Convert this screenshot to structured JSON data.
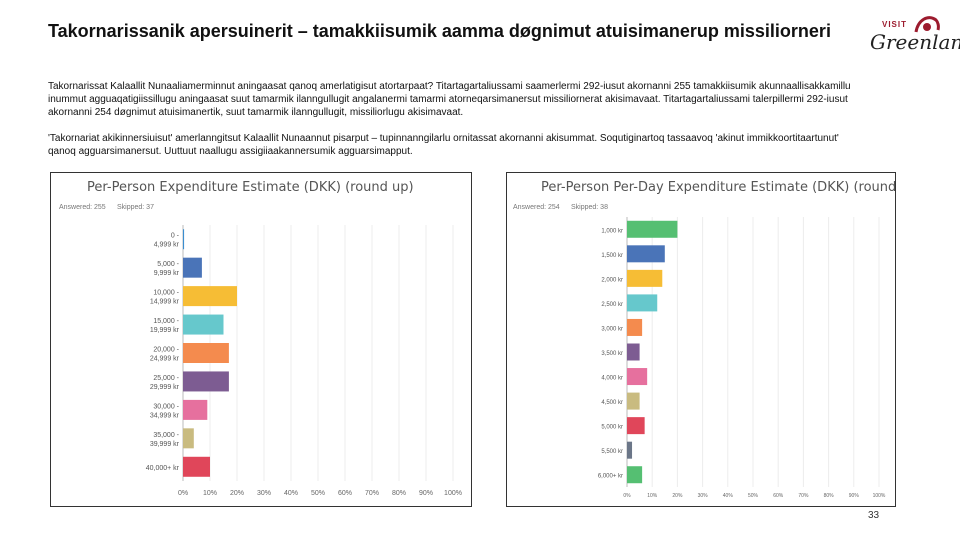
{
  "title": "Takornarissanik apersuinerit – tamakkiisumik aamma døgnimut atuisimanerup missiliorneri",
  "logo": {
    "visit": "VISIT",
    "name": "Greenland"
  },
  "paragraph1": "Takornarissat Kalaallit Nunaaliamerminnut aningaasat qanoq amerlatigisut atortarpaat? Titartagartaliussami saamerlermi 292-iusut akornanni 255 tamakkiisumik akunnaallisakkamillu inummut agguaqatigiissillugu aningaasat suut tamarmik ilanngullugit angalanermi tamarmi atorneqarsimanersut missiliornerat akisimavaat. Titartagartaliussami talerpillermi 292-iusut akornanni 254 døgnimut atuisimanertik, suut tamarmik ilanngullugit, missiliorlugu akisimavaat.",
  "paragraph2": "'Takornariat akikinnersiuisut' amerlanngitsut Kalaallit Nunaannut pisarput – tupinnanngilarlu ornitassat akornanni akisummat. Soqutiginartoq tassaavoq 'akinut immikkoortitaartunut' qanoq agguarsimanersut. Uuttuut naallugu assigiiaakannersumik agguarsimapput.",
  "page_number": "33",
  "chart_data": [
    {
      "type": "bar",
      "orientation": "horizontal",
      "title": "Per-Person Expenditure Estimate (DKK) (round up)",
      "answered": "Answered: 255",
      "skipped": "Skipped: 37",
      "categories": [
        "0 - 4,999 kr",
        "5,000 - 9,999 kr",
        "10,000 - 14,999 kr",
        "15,000 - 19,999 kr",
        "20,000 - 24,999 kr",
        "25,000 - 29,999 kr",
        "30,000 - 34,999 kr",
        "35,000 - 39,999 kr",
        "40,000+ kr"
      ],
      "values": [
        0.4,
        7,
        20,
        15,
        17,
        17,
        9,
        4,
        10
      ],
      "colors": [
        "#3b8ed0",
        "#4a74b8",
        "#f6bd35",
        "#66c8cc",
        "#f48b4e",
        "#7d5c92",
        "#e6709e",
        "#c9bb80",
        "#e0465a"
      ],
      "xlim": [
        0,
        100
      ],
      "xticks": [
        "0%",
        "10%",
        "20%",
        "30%",
        "40%",
        "50%",
        "60%",
        "70%",
        "80%",
        "90%",
        "100%"
      ]
    },
    {
      "type": "bar",
      "orientation": "horizontal",
      "title": "Per-Person Per-Day Expenditure Estimate (DKK) (round up)",
      "answered": "Answered: 254",
      "skipped": "Skipped: 38",
      "categories": [
        "1,000 kr",
        "1,500 kr",
        "2,000 kr",
        "2,500 kr",
        "3,000 kr",
        "3,500 kr",
        "4,000 kr",
        "4,500 kr",
        "5,000 kr",
        "5,500 kr",
        "6,000+ kr"
      ],
      "values": [
        20,
        15,
        14,
        12,
        6,
        5,
        8,
        5,
        7,
        2,
        6
      ],
      "colors": [
        "#55bf72",
        "#4a74b8",
        "#f6bd35",
        "#66c8cc",
        "#f48b4e",
        "#7d5c92",
        "#e6709e",
        "#c9bb80",
        "#e0465a",
        "#6b7688",
        "#55bf72"
      ],
      "xlim": [
        0,
        100
      ],
      "xticks": [
        "0%",
        "10%",
        "20%",
        "30%",
        "40%",
        "50%",
        "60%",
        "70%",
        "80%",
        "90%",
        "100%"
      ]
    }
  ]
}
